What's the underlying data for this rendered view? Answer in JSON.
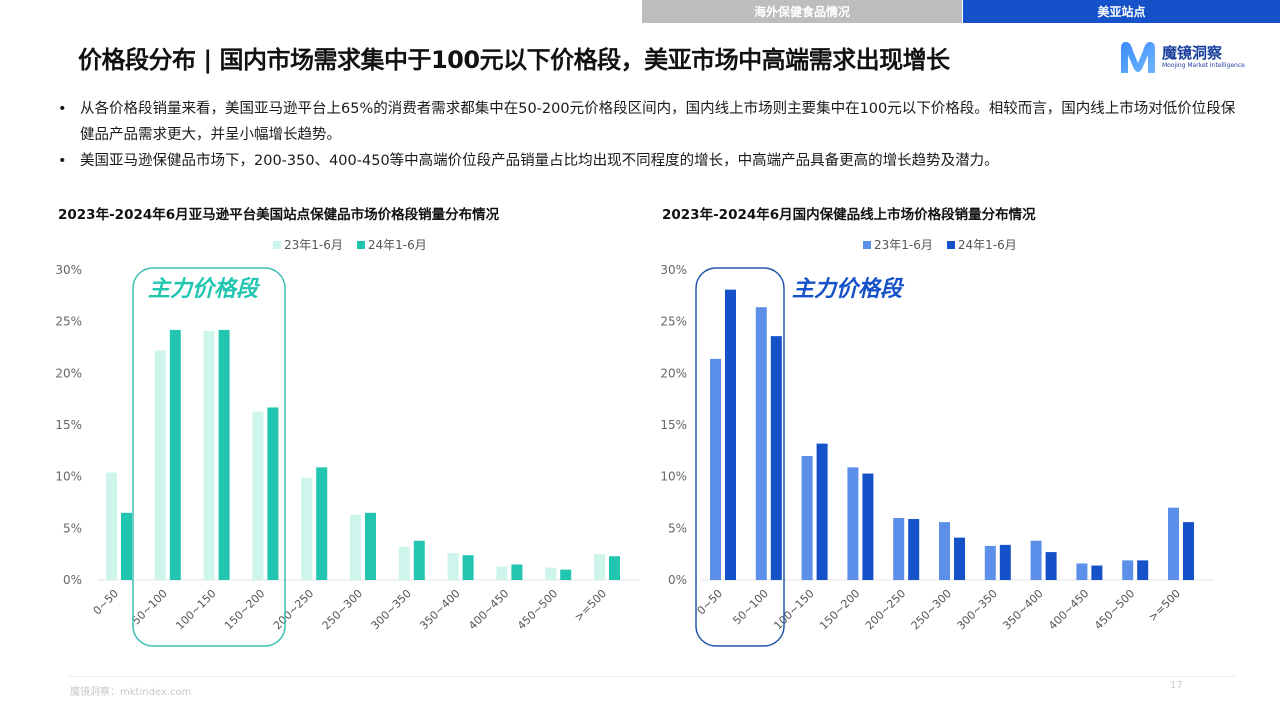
{
  "header": {
    "tabs": [
      {
        "label": "海外保健食品情况",
        "active": false
      },
      {
        "label": "美亚站点",
        "active": true
      }
    ],
    "title": "价格段分布 | 国内市场需求集中于100元以下价格段，美亚市场中高端需求出现增长",
    "logo": {
      "cn": "魔镜洞察",
      "en": "Moojing Market Intelligence"
    }
  },
  "bullets": [
    "从各价格段销量来看，美国亚马逊平台上65%的消费者需求都集中在50-200元价格段区间内，国内线上市场则主要集中在100元以下价格段。相较而言，国内线上市场对低价位段保健品产品需求更大，并呈小幅增长趋势。",
    "美国亚马逊保健品市场下，200-350、400-450等中高端价位段产品销量占比均出现不同程度的增长，中高端产品具备更高的增长趋势及潜力。"
  ],
  "footer": {
    "source": "魔镜洞察：mktindex.com",
    "page": "17"
  },
  "colors": {
    "left_23": "#cdf5ec",
    "left_24": "#22c6b0",
    "left_highlight": "#3cc0b2",
    "right_23": "#5b8fea",
    "right_24": "#1552c9",
    "right_highlight": "#2457a8"
  },
  "chart_data": [
    {
      "type": "bar",
      "title": "2023年-2024年6月亚马逊平台美国站点保健品市场价格段销量分布情况",
      "categories": [
        "0~50",
        "50~100",
        "100~150",
        "150~200",
        "200~250",
        "250~300",
        "300~350",
        "350~400",
        "400~450",
        "450~500",
        ">=500"
      ],
      "series": [
        {
          "name": "23年1-6月",
          "values": [
            10.4,
            22.2,
            24.1,
            16.3,
            9.9,
            6.3,
            3.2,
            2.6,
            1.3,
            1.2,
            2.5
          ]
        },
        {
          "name": "24年1-6月",
          "values": [
            6.5,
            24.2,
            24.2,
            16.7,
            10.9,
            6.5,
            3.8,
            2.4,
            1.5,
            1.0,
            2.3
          ]
        }
      ],
      "xlabel": "",
      "ylabel": "",
      "yticks": [
        "0%",
        "5%",
        "10%",
        "15%",
        "20%",
        "25%",
        "30%"
      ],
      "ylim": [
        0,
        30
      ],
      "grid": false,
      "legend_position": "top",
      "annotation": {
        "text": "主力价格段",
        "covers": [
          "50~100",
          "100~150",
          "150~200"
        ]
      }
    },
    {
      "type": "bar",
      "title": "2023年-2024年6月国内保健品线上市场价格段销量分布情况",
      "categories": [
        "0~50",
        "50~100",
        "100~150",
        "150~200",
        "200~250",
        "250~300",
        "300~350",
        "350~400",
        "400~450",
        "450~500",
        ">=500"
      ],
      "series": [
        {
          "name": "23年1-6月",
          "values": [
            21.4,
            26.4,
            12.0,
            10.9,
            6.0,
            5.6,
            3.3,
            3.8,
            1.6,
            1.9,
            7.0
          ]
        },
        {
          "name": "24年1-6月",
          "values": [
            28.1,
            23.6,
            13.2,
            10.3,
            5.9,
            4.1,
            3.4,
            2.7,
            1.4,
            1.9,
            5.6
          ]
        }
      ],
      "xlabel": "",
      "ylabel": "",
      "yticks": [
        "0%",
        "5%",
        "10%",
        "15%",
        "20%",
        "25%",
        "30%"
      ],
      "ylim": [
        0,
        30
      ],
      "grid": false,
      "legend_position": "top",
      "annotation": {
        "text": "主力价格段",
        "covers": [
          "0~50",
          "50~100"
        ]
      }
    }
  ]
}
